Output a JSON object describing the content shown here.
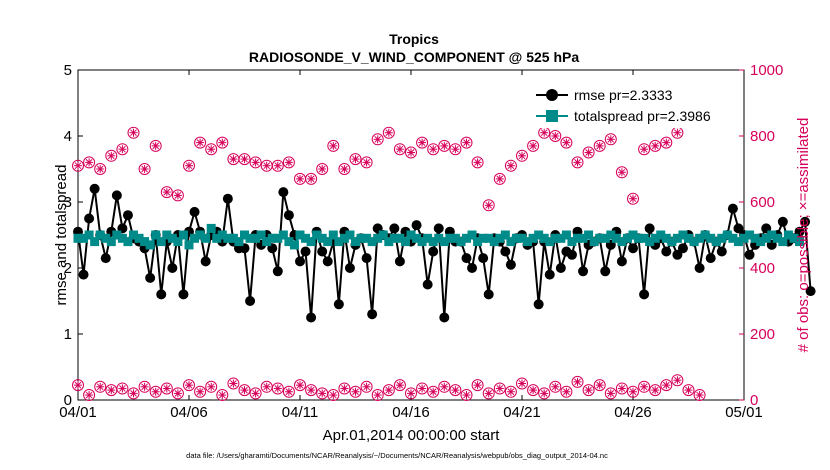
{
  "chart_data": {
    "type": "line",
    "title": "Tropics",
    "subtitle": "RADIOSONDE_V_WIND_COMPONENT @ 525 hPa",
    "xlabel": "Apr.01,2014 00:00:00 start",
    "ylabel_left": "rmse and totalspread",
    "ylabel_right": "# of obs: o=possible; ×=assimilated",
    "footer": "data file: /Users/gharamti/Documents/NCAR/Reanalysis/~/Documents/NCAR/Reanalysis/webpub/obs_diag_output_2014-04.nc",
    "x_ticks": [
      "04/01",
      "04/06",
      "04/11",
      "04/16",
      "04/21",
      "04/26",
      "05/01"
    ],
    "xlim_days": [
      0,
      30
    ],
    "ylim_left": [
      0,
      5
    ],
    "ylim_right": [
      0,
      1000
    ],
    "y_ticks_left": [
      "0",
      "1",
      "2",
      "3",
      "4",
      "5"
    ],
    "y_ticks_right": [
      "0",
      "200",
      "400",
      "600",
      "800",
      "1000"
    ],
    "colors": {
      "rmse": "#000000",
      "spread": "#008b8b",
      "obs": "#d6005a"
    },
    "legend": [
      {
        "name": "rmse  pr=2.3333",
        "marker": "circle",
        "color": "#000000"
      },
      {
        "name": "totalspread  pr=2.3986",
        "marker": "square",
        "color": "#008b8b"
      }
    ],
    "series": [
      {
        "name": "rmse",
        "axis": "left",
        "step_days": 0.25,
        "values": [
          2.55,
          1.9,
          2.75,
          3.2,
          2.5,
          2.15,
          2.55,
          3.1,
          2.6,
          2.8,
          2.45,
          2.4,
          2.3,
          1.85,
          2.5,
          1.6,
          2.4,
          2.0,
          2.5,
          1.6,
          2.55,
          2.85,
          2.55,
          2.1,
          2.5,
          2.55,
          2.4,
          3.05,
          2.4,
          2.3,
          2.3,
          1.5,
          2.5,
          2.35,
          2.5,
          2.3,
          1.95,
          3.15,
          2.8,
          2.5,
          2.1,
          2.25,
          1.25,
          2.55,
          2.25,
          2.1,
          2.4,
          1.45,
          2.55,
          2.0,
          2.35,
          2.45,
          2.15,
          1.3,
          2.6,
          2.5,
          2.45,
          2.6,
          2.1,
          2.55,
          2.4,
          2.65,
          2.45,
          1.75,
          2.25,
          2.6,
          1.25,
          2.55,
          2.4,
          2.4,
          2.15,
          2.0,
          2.45,
          2.15,
          1.6,
          2.45,
          2.4,
          2.25,
          2.05,
          2.45,
          2.5,
          2.35,
          2.4,
          1.45,
          2.4,
          1.9,
          2.5,
          2.0,
          2.25,
          2.2,
          2.55,
          1.95,
          2.35,
          2.4,
          2.45,
          1.95,
          2.35,
          2.55,
          2.1,
          2.45,
          2.3,
          2.45,
          1.6,
          2.6,
          2.35,
          2.45,
          2.25,
          2.4,
          2.2,
          2.3,
          2.5,
          2.4,
          2.0,
          2.5,
          2.15,
          2.4,
          2.25,
          2.5,
          2.9,
          2.6,
          2.5,
          2.2,
          2.35,
          2.45,
          2.6,
          2.35,
          2.5,
          2.7,
          2.4,
          2.45,
          2.55,
          2.7,
          1.65
        ],
        "marker": "circle",
        "color": "#000000"
      },
      {
        "name": "totalspread",
        "axis": "left",
        "step_days": 0.25,
        "values": [
          2.45,
          2.45,
          2.5,
          2.4,
          2.5,
          2.45,
          2.4,
          2.5,
          2.45,
          2.4,
          2.5,
          2.45,
          2.4,
          2.35,
          2.5,
          2.4,
          2.5,
          2.45,
          2.4,
          2.5,
          2.35,
          2.45,
          2.5,
          2.45,
          2.6,
          2.45,
          2.5,
          2.45,
          2.45,
          2.4,
          2.5,
          2.45,
          2.45,
          2.5,
          2.4,
          2.45,
          2.45,
          2.5,
          2.4,
          2.35,
          2.5,
          2.45,
          2.4,
          2.5,
          2.45,
          2.4,
          2.5,
          2.4,
          2.45,
          2.5,
          2.4,
          2.45,
          2.45,
          2.4,
          2.45,
          2.5,
          2.4,
          2.45,
          2.45,
          2.4,
          2.5,
          2.45,
          2.4,
          2.45,
          2.4,
          2.45,
          2.4,
          2.45,
          2.45,
          2.4,
          2.45,
          2.5,
          2.4,
          2.45,
          2.45,
          2.4,
          2.45,
          2.5,
          2.4,
          2.45,
          2.45,
          2.4,
          2.45,
          2.5,
          2.45,
          2.4,
          2.45,
          2.45,
          2.5,
          2.4,
          2.45,
          2.45,
          2.5,
          2.4,
          2.45,
          2.45,
          2.5,
          2.45,
          2.4,
          2.45,
          2.5,
          2.45,
          2.45,
          2.4,
          2.45,
          2.5,
          2.45,
          2.4,
          2.45,
          2.5,
          2.45,
          2.4,
          2.45,
          2.5,
          2.45,
          2.4,
          2.45,
          2.5,
          2.45,
          2.4,
          2.45,
          2.5,
          2.45,
          2.4,
          2.45,
          2.5,
          2.45,
          2.4,
          2.5,
          2.45,
          2.4
        ],
        "marker": "square",
        "color": "#008b8b"
      },
      {
        "name": "obs_possible",
        "axis": "right",
        "start_day": 0,
        "step_days": 0.5,
        "values": [
          710,
          720,
          700,
          740,
          760,
          810,
          700,
          770,
          630,
          620,
          710,
          780,
          760,
          780,
          730,
          730,
          720,
          710,
          710,
          720,
          670,
          670,
          700,
          770,
          700,
          730,
          720,
          790,
          810,
          760,
          750,
          780,
          760,
          770,
          760,
          780,
          720,
          590,
          670,
          710,
          740,
          770,
          810,
          800,
          780,
          720,
          750,
          770,
          790,
          690,
          610,
          760,
          770,
          780,
          810
        ],
        "marker": "circle",
        "color": "#d6005a"
      },
      {
        "name": "obs_possible_low",
        "axis": "right",
        "start_day": 0,
        "step_days": 0.5,
        "values": [
          45,
          15,
          40,
          30,
          35,
          20,
          40,
          25,
          35,
          20,
          45,
          25,
          40,
          15,
          50,
          30,
          20,
          40,
          35,
          25,
          45,
          30,
          20,
          15,
          35,
          25,
          40,
          15,
          30,
          45,
          20,
          35,
          25,
          40,
          30,
          15,
          45,
          20,
          35,
          25,
          50,
          30,
          20,
          40,
          25,
          55,
          30,
          45,
          20,
          35,
          25,
          40,
          30,
          45,
          60,
          30,
          15
        ],
        "marker": "circle",
        "color": "#d6005a"
      }
    ]
  }
}
